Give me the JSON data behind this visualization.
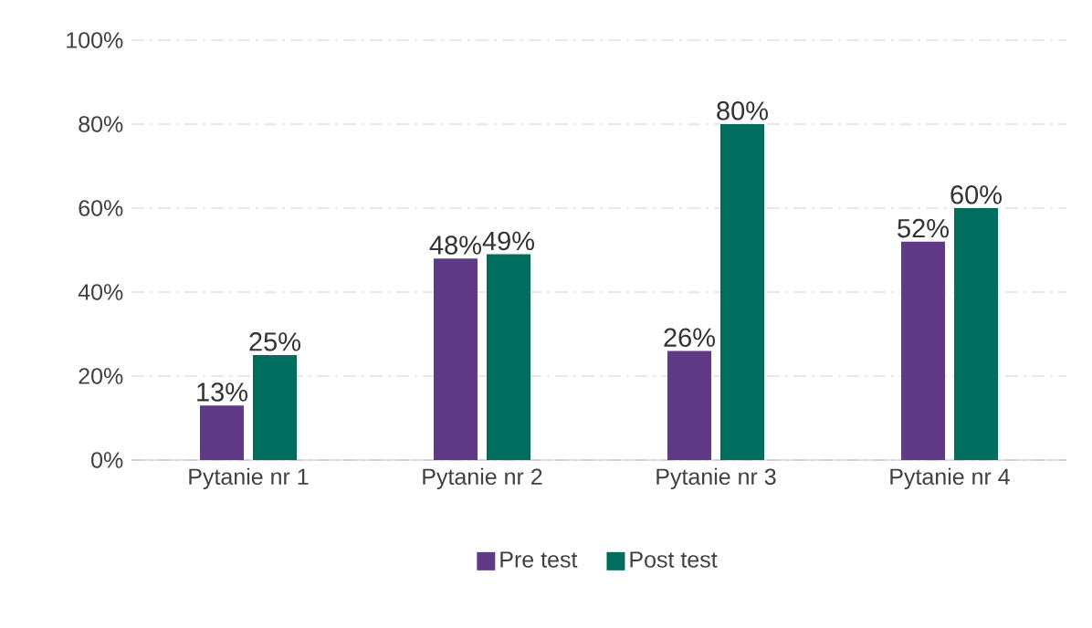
{
  "chart_data": {
    "type": "bar",
    "categories": [
      "Pytanie nr 1",
      "Pytanie nr 2",
      "Pytanie nr 3",
      "Pytanie nr 4"
    ],
    "series": [
      {
        "name": "Pre test",
        "color": "#5f3a86",
        "values": [
          13,
          48,
          26,
          52
        ],
        "value_labels": [
          "13%",
          "48%",
          "26%",
          "52%"
        ]
      },
      {
        "name": "Post test",
        "color": "#006d5f",
        "values": [
          25,
          49,
          80,
          60
        ],
        "value_labels": [
          "25%",
          "49%",
          "80%",
          "60%"
        ]
      }
    ],
    "ylim": [
      0,
      100
    ],
    "yticks": [
      {
        "value": 0,
        "label": "0%"
      },
      {
        "value": 20,
        "label": "20%"
      },
      {
        "value": 40,
        "label": "40%"
      },
      {
        "value": 60,
        "label": "60%"
      },
      {
        "value": 80,
        "label": "80%"
      },
      {
        "value": 100,
        "label": "100%"
      }
    ],
    "grid": "y",
    "legend": "bottom"
  }
}
